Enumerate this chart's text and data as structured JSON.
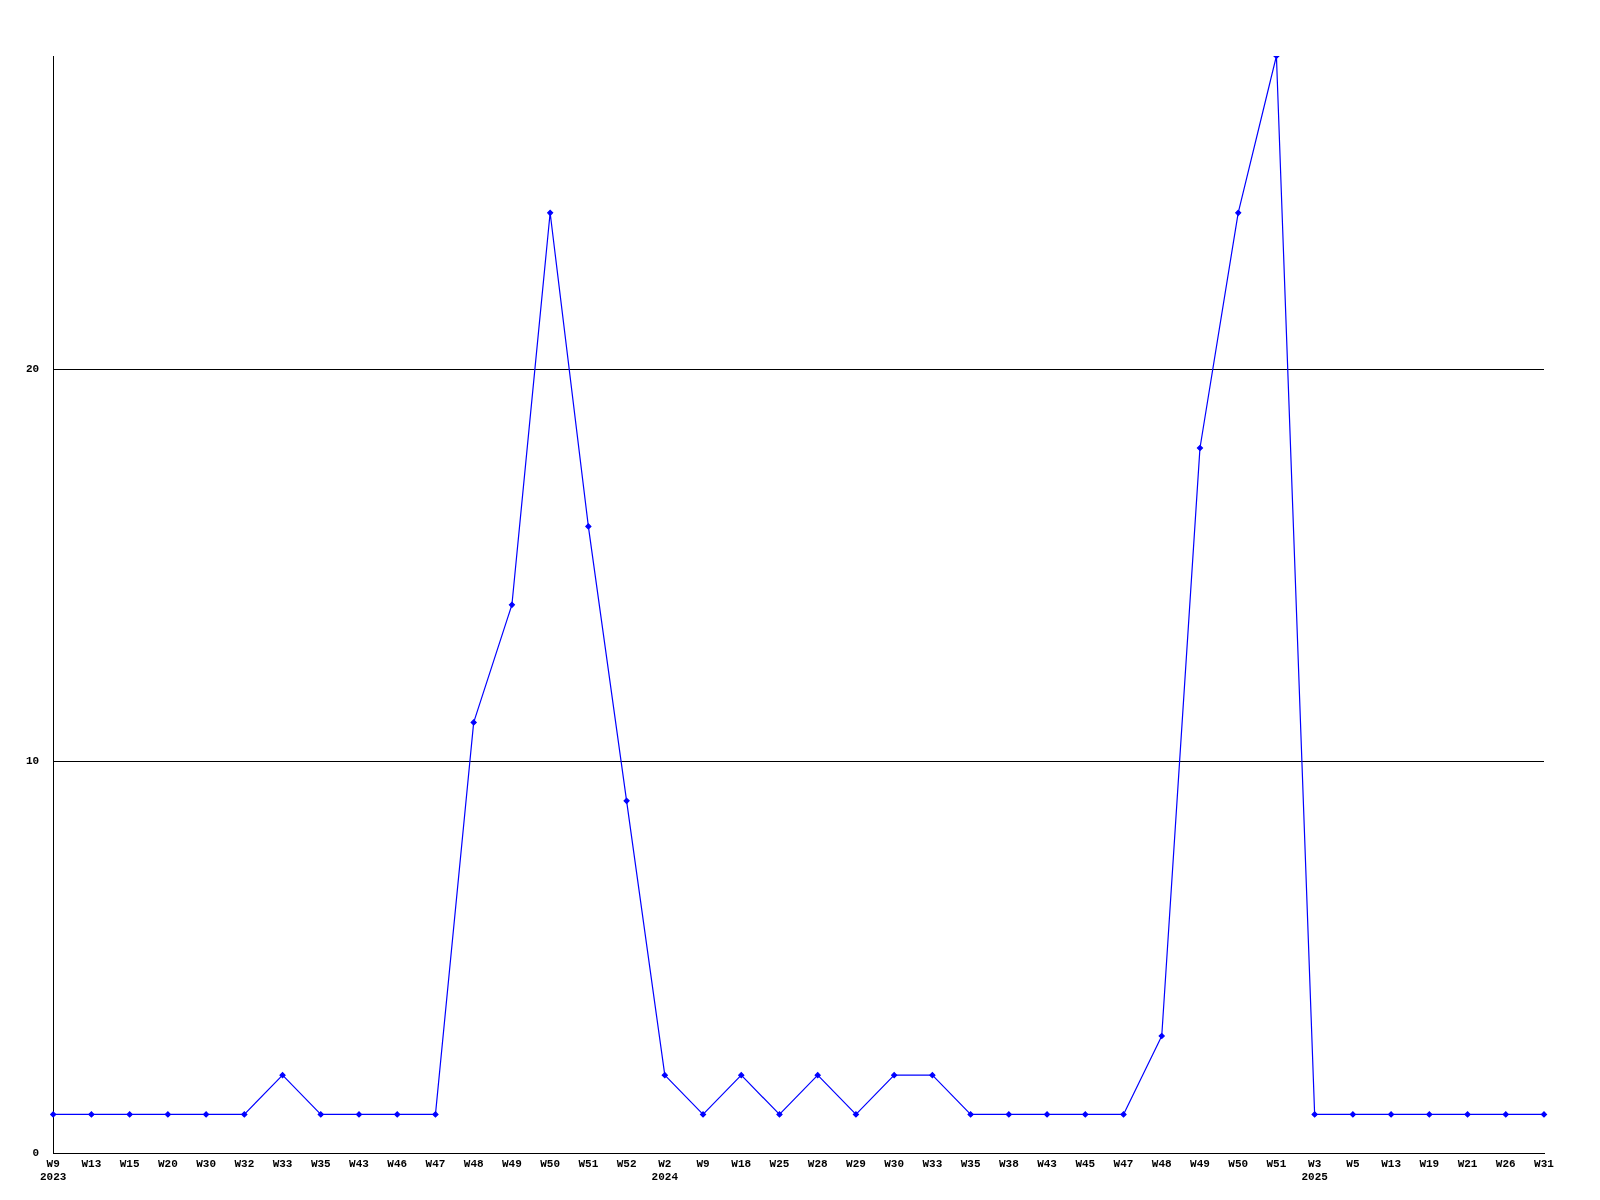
{
  "chart_data": {
    "type": "line",
    "categories": [
      "W9\n2023",
      "W13",
      "W15",
      "W20",
      "W30",
      "W32",
      "W33",
      "W35",
      "W43",
      "W46",
      "W47",
      "W48",
      "W49",
      "W50",
      "W51",
      "W52",
      "W2\n2024",
      "W9",
      "W18",
      "W25",
      "W28",
      "W29",
      "W30",
      "W33",
      "W35",
      "W38",
      "W43",
      "W45",
      "W47",
      "W48",
      "W49",
      "W50",
      "W51",
      "W3\n2025",
      "W5",
      "W13",
      "W19",
      "W21",
      "W26",
      "W31"
    ],
    "series": [
      {
        "color": "#0000ff",
        "values": [
          1,
          1,
          1,
          1,
          1,
          1,
          2,
          1,
          1,
          1,
          1,
          11,
          14,
          24,
          16,
          9,
          2,
          1,
          2,
          1,
          2,
          1,
          2,
          2,
          1,
          1,
          1,
          1,
          1,
          3,
          18,
          24,
          28,
          1,
          1,
          1,
          1,
          1,
          1,
          1
        ]
      }
    ],
    "ylim": [
      0,
      28
    ],
    "yticks": [
      0,
      10,
      20
    ],
    "grid": "y",
    "marker": "diamond",
    "line_style": "solid",
    "legend": false
  }
}
